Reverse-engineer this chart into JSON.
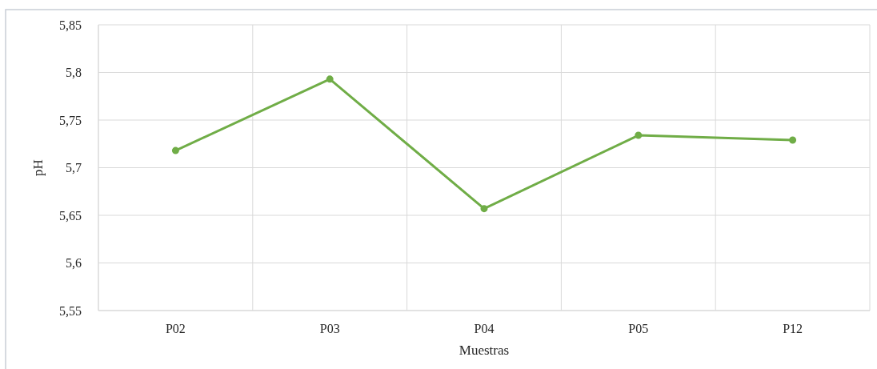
{
  "chart_data": {
    "type": "line",
    "xlabel": "Muestras",
    "ylabel": "pH",
    "categories": [
      "P02",
      "P03",
      "P04",
      "P05",
      "P12"
    ],
    "series": [
      {
        "color": "#70ad47",
        "values": [
          5.718,
          5.793,
          5.657,
          5.734,
          5.729
        ]
      }
    ],
    "ylim": [
      5.55,
      5.85
    ],
    "yticks": [
      {
        "value": 5.55,
        "label": "5,55"
      },
      {
        "value": 5.6,
        "label": "5,6"
      },
      {
        "value": 5.65,
        "label": "5,65"
      },
      {
        "value": 5.7,
        "label": "5,7"
      },
      {
        "value": 5.75,
        "label": "5,75"
      },
      {
        "value": 5.8,
        "label": "5,8"
      },
      {
        "value": 5.85,
        "label": "5,85"
      }
    ],
    "grid": true,
    "marker": "circle",
    "line_style": "solid"
  }
}
